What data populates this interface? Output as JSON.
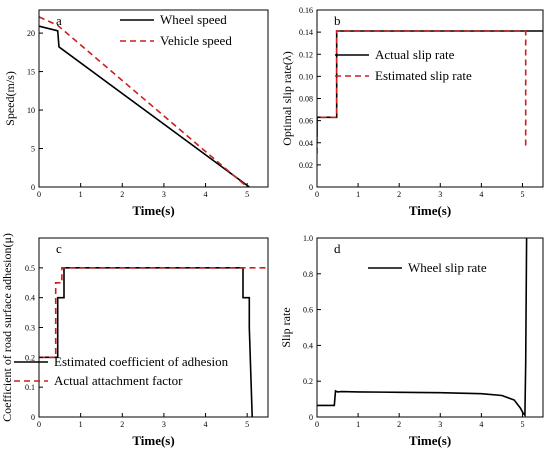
{
  "chart_data": [
    {
      "type": "line",
      "panel_label": "a",
      "xlabel": "Time(s)",
      "ylabel": "Speed(m/s)",
      "xlim": [
        0,
        5.5
      ],
      "ylim": [
        0,
        23
      ],
      "xticks": [
        0,
        1,
        2,
        3,
        4,
        5
      ],
      "yticks": [
        0,
        5,
        10,
        15,
        20
      ],
      "legend_position": "top-right",
      "series": [
        {
          "name": "Wheel speed",
          "color": "#000000",
          "dash": "solid",
          "x": [
            0,
            0.45,
            0.48,
            5.05
          ],
          "y": [
            20.9,
            20.3,
            18.2,
            0
          ]
        },
        {
          "name": "Vehicle speed",
          "color": "#cc1f1f",
          "dash": "dashed",
          "x": [
            0,
            0.45,
            5.0
          ],
          "y": [
            22.1,
            21.0,
            0
          ]
        }
      ]
    },
    {
      "type": "line",
      "panel_label": "b",
      "xlabel": "Time(s)",
      "ylabel": "Optimal slip rate(λ)",
      "xlim": [
        0,
        5.5
      ],
      "ylim": [
        0,
        0.16
      ],
      "xticks": [
        0,
        1,
        2,
        3,
        4,
        5
      ],
      "yticks": [
        0,
        0.02,
        0.04,
        0.06,
        0.08,
        0.1,
        0.12,
        0.14,
        0.16
      ],
      "yticklabels": [
        "0",
        "0.02",
        "0.04",
        "0.06",
        "0.08",
        "0.10",
        "0.12",
        "0.14",
        "0.16"
      ],
      "legend_position": "top-right",
      "series": [
        {
          "name": "Actual slip rate",
          "color": "#000000",
          "dash": "solid",
          "x": [
            0,
            0,
            0.48,
            0.48,
            5.5
          ],
          "y": [
            0.045,
            0.063,
            0.063,
            0.141,
            0.141
          ]
        },
        {
          "name": "Estimated slip rate",
          "color": "#cc1f1f",
          "dash": "dashed",
          "x": [
            0,
            0,
            0.48,
            0.48,
            5.08,
            5.08
          ],
          "y": [
            0.03,
            0.063,
            0.063,
            0.141,
            0.141,
            0.035
          ]
        }
      ]
    },
    {
      "type": "line",
      "panel_label": "c",
      "xlabel": "Time(s)",
      "ylabel": "Coefficient of road surface adhesion(μ)",
      "xlim": [
        0,
        5.5
      ],
      "ylim": [
        0,
        0.6
      ],
      "xticks": [
        0,
        1,
        2,
        3,
        4,
        5
      ],
      "yticks": [
        0,
        0.1,
        0.2,
        0.3,
        0.4,
        0.5
      ],
      "yticklabels": [
        "0",
        "0.1",
        "0.2",
        "0.3",
        "0.4",
        "0.5"
      ],
      "legend_position": "bottom-right",
      "series": [
        {
          "name": "Estimated coefficient of adhesion",
          "color": "#000000",
          "dash": "solid",
          "x": [
            0,
            0.45,
            0.45,
            0.6,
            0.6,
            4.9,
            4.9,
            5.05,
            5.05,
            5.12
          ],
          "y": [
            0.2,
            0.2,
            0.4,
            0.4,
            0.5,
            0.5,
            0.4,
            0.4,
            0.3,
            0
          ]
        },
        {
          "name": "Actual attachment factor",
          "color": "#cc1f1f",
          "dash": "dashed",
          "x": [
            0,
            0.4,
            0.4,
            0.55,
            0.55,
            5.5
          ],
          "y": [
            0.2,
            0.2,
            0.45,
            0.45,
            0.5,
            0.5
          ]
        }
      ]
    },
    {
      "type": "line",
      "panel_label": "d",
      "xlabel": "Time(s)",
      "ylabel": "Slip rate",
      "xlim": [
        0,
        5.5
      ],
      "ylim": [
        0,
        1.0
      ],
      "xticks": [
        0,
        1,
        2,
        3,
        4,
        5
      ],
      "yticks": [
        0,
        0.2,
        0.4,
        0.6,
        0.8,
        1.0
      ],
      "yticklabels": [
        "0",
        "0.2",
        "0.4",
        "0.6",
        "0.8",
        "1.0"
      ],
      "legend_position": "top-right",
      "series": [
        {
          "name": "Wheel slip rate",
          "color": "#000000",
          "dash": "solid",
          "x": [
            0,
            0.42,
            0.45,
            0.5,
            0.6,
            1,
            2,
            3,
            4,
            4.5,
            4.8,
            4.95,
            5.02,
            5.06,
            5.08,
            5.1
          ],
          "y": [
            0.065,
            0.065,
            0.145,
            0.14,
            0.142,
            0.14,
            0.138,
            0.136,
            0.13,
            0.12,
            0.095,
            0.05,
            0.02,
            0.01,
            0.3,
            1.0
          ]
        }
      ]
    }
  ]
}
